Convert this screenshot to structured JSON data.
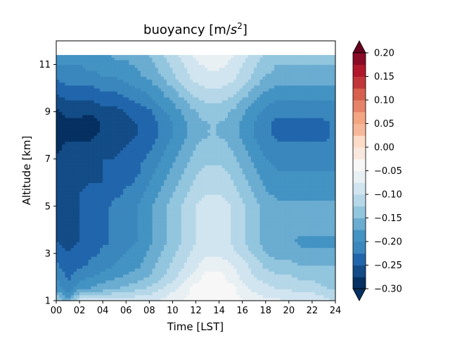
{
  "chart_data": {
    "type": "heatmap",
    "title_main": "buoyancy [m/",
    "title_unit_base": "s",
    "title_unit_exp": "2",
    "title_close": "]",
    "xlabel": "Time [LST]",
    "ylabel": "Altitude [km]",
    "xlim": [
      0,
      24
    ],
    "ylim": [
      1,
      12
    ],
    "data_top_km": 11.4,
    "x_ticks": [
      "00",
      "02",
      "04",
      "06",
      "08",
      "10",
      "12",
      "14",
      "16",
      "18",
      "20",
      "22",
      "24"
    ],
    "y_ticks": [
      "1",
      "3",
      "5",
      "7",
      "9",
      "11"
    ],
    "colorbar": {
      "extend": "both",
      "ticks": [
        "0.20",
        "0.15",
        "0.10",
        "0.05",
        "0.00",
        "−0.05",
        "−0.10",
        "−0.15",
        "−0.20",
        "−0.25",
        "−0.30"
      ],
      "vmin": -0.3,
      "vmax": 0.2,
      "levels": [
        -0.3,
        -0.275,
        -0.25,
        -0.225,
        -0.2,
        -0.175,
        -0.15,
        -0.125,
        -0.1,
        -0.075,
        -0.05,
        -0.025,
        0,
        0.025,
        0.05,
        0.075,
        0.1,
        0.125,
        0.15,
        0.175,
        0.2
      ],
      "colors": [
        "#053061",
        "#134c87",
        "#2166ac",
        "#3a87bd",
        "#4393c3",
        "#6bacd1",
        "#92c5de",
        "#b5d7e8",
        "#d1e5f0",
        "#e9f0f4",
        "#f7f7f7",
        "#f9e8dd",
        "#fddbc7",
        "#f7b799",
        "#f4a582",
        "#e58268",
        "#d6604d",
        "#c13639",
        "#b2182b",
        "#8a0b25",
        "#67001f"
      ]
    },
    "times": [
      0,
      1,
      2,
      3,
      4,
      5,
      6,
      7,
      8,
      9,
      10,
      11,
      12,
      13,
      14,
      15,
      16,
      17,
      18,
      19,
      20,
      21,
      22,
      23,
      24
    ],
    "altitudes": [
      1.0,
      1.5,
      2.0,
      2.5,
      3.0,
      3.5,
      4.0,
      4.5,
      5.0,
      5.5,
      6.0,
      6.5,
      7.0,
      7.5,
      8.0,
      8.5,
      9.0,
      9.5,
      10.0,
      10.5,
      11.0,
      11.4
    ],
    "values": [
      [
        -0.12,
        -0.16,
        -0.09,
        -0.08,
        -0.08,
        -0.08,
        -0.08,
        -0.08,
        -0.08,
        -0.07,
        -0.06,
        -0.05,
        -0.04,
        -0.03,
        -0.03,
        -0.04,
        -0.05,
        -0.06,
        -0.07,
        -0.07,
        -0.08,
        -0.08,
        -0.08,
        -0.09,
        -0.1
      ],
      [
        -0.18,
        -0.22,
        -0.18,
        -0.17,
        -0.16,
        -0.15,
        -0.14,
        -0.13,
        -0.12,
        -0.1,
        -0.08,
        -0.06,
        -0.04,
        -0.03,
        -0.03,
        -0.04,
        -0.06,
        -0.08,
        -0.09,
        -0.1,
        -0.1,
        -0.11,
        -0.11,
        -0.12,
        -0.13
      ],
      [
        -0.2,
        -0.23,
        -0.21,
        -0.2,
        -0.19,
        -0.18,
        -0.17,
        -0.16,
        -0.15,
        -0.13,
        -0.11,
        -0.08,
        -0.06,
        -0.04,
        -0.04,
        -0.06,
        -0.08,
        -0.1,
        -0.11,
        -0.12,
        -0.12,
        -0.13,
        -0.13,
        -0.14,
        -0.14
      ],
      [
        -0.22,
        -0.24,
        -0.23,
        -0.22,
        -0.21,
        -0.2,
        -0.19,
        -0.18,
        -0.16,
        -0.14,
        -0.12,
        -0.1,
        -0.08,
        -0.06,
        -0.06,
        -0.07,
        -0.09,
        -0.11,
        -0.13,
        -0.14,
        -0.14,
        -0.15,
        -0.15,
        -0.15,
        -0.15
      ],
      [
        -0.24,
        -0.25,
        -0.24,
        -0.23,
        -0.22,
        -0.21,
        -0.2,
        -0.19,
        -0.17,
        -0.15,
        -0.13,
        -0.11,
        -0.09,
        -0.08,
        -0.08,
        -0.09,
        -0.11,
        -0.13,
        -0.15,
        -0.16,
        -0.16,
        -0.17,
        -0.17,
        -0.17,
        -0.17
      ],
      [
        -0.25,
        -0.26,
        -0.25,
        -0.24,
        -0.23,
        -0.22,
        -0.21,
        -0.2,
        -0.18,
        -0.16,
        -0.14,
        -0.12,
        -0.1,
        -0.09,
        -0.09,
        -0.1,
        -0.12,
        -0.14,
        -0.16,
        -0.17,
        -0.17,
        -0.18,
        -0.18,
        -0.18,
        -0.18
      ],
      [
        -0.26,
        -0.26,
        -0.25,
        -0.24,
        -0.23,
        -0.22,
        -0.21,
        -0.2,
        -0.18,
        -0.16,
        -0.14,
        -0.12,
        -0.1,
        -0.09,
        -0.09,
        -0.1,
        -0.12,
        -0.14,
        -0.16,
        -0.17,
        -0.17,
        -0.17,
        -0.17,
        -0.17,
        -0.17
      ],
      [
        -0.26,
        -0.27,
        -0.25,
        -0.24,
        -0.23,
        -0.22,
        -0.21,
        -0.2,
        -0.18,
        -0.16,
        -0.14,
        -0.12,
        -0.1,
        -0.09,
        -0.09,
        -0.1,
        -0.12,
        -0.14,
        -0.16,
        -0.17,
        -0.17,
        -0.17,
        -0.17,
        -0.17,
        -0.17
      ],
      [
        -0.26,
        -0.27,
        -0.25,
        -0.24,
        -0.23,
        -0.22,
        -0.21,
        -0.2,
        -0.18,
        -0.16,
        -0.14,
        -0.12,
        -0.1,
        -0.09,
        -0.09,
        -0.1,
        -0.12,
        -0.14,
        -0.16,
        -0.17,
        -0.17,
        -0.17,
        -0.17,
        -0.17,
        -0.17
      ],
      [
        -0.26,
        -0.27,
        -0.25,
        -0.24,
        -0.24,
        -0.23,
        -0.22,
        -0.21,
        -0.19,
        -0.17,
        -0.15,
        -0.13,
        -0.11,
        -0.1,
        -0.1,
        -0.11,
        -0.13,
        -0.15,
        -0.17,
        -0.18,
        -0.18,
        -0.18,
        -0.18,
        -0.18,
        -0.18
      ],
      [
        -0.27,
        -0.27,
        -0.26,
        -0.25,
        -0.25,
        -0.24,
        -0.23,
        -0.22,
        -0.2,
        -0.18,
        -0.16,
        -0.14,
        -0.12,
        -0.11,
        -0.11,
        -0.12,
        -0.14,
        -0.16,
        -0.18,
        -0.19,
        -0.19,
        -0.19,
        -0.19,
        -0.19,
        -0.19
      ],
      [
        -0.27,
        -0.27,
        -0.26,
        -0.26,
        -0.25,
        -0.24,
        -0.24,
        -0.23,
        -0.21,
        -0.19,
        -0.17,
        -0.15,
        -0.13,
        -0.12,
        -0.12,
        -0.13,
        -0.15,
        -0.17,
        -0.19,
        -0.2,
        -0.2,
        -0.2,
        -0.2,
        -0.2,
        -0.2
      ],
      [
        -0.27,
        -0.27,
        -0.26,
        -0.26,
        -0.25,
        -0.25,
        -0.24,
        -0.23,
        -0.22,
        -0.2,
        -0.18,
        -0.16,
        -0.14,
        -0.13,
        -0.13,
        -0.14,
        -0.16,
        -0.18,
        -0.2,
        -0.21,
        -0.21,
        -0.21,
        -0.21,
        -0.21,
        -0.21
      ],
      [
        -0.28,
        -0.27,
        -0.27,
        -0.27,
        -0.26,
        -0.26,
        -0.25,
        -0.24,
        -0.23,
        -0.21,
        -0.19,
        -0.17,
        -0.15,
        -0.14,
        -0.14,
        -0.15,
        -0.17,
        -0.19,
        -0.21,
        -0.22,
        -0.22,
        -0.22,
        -0.22,
        -0.22,
        -0.22
      ],
      [
        -0.29,
        -0.28,
        -0.28,
        -0.28,
        -0.27,
        -0.27,
        -0.26,
        -0.25,
        -0.24,
        -0.22,
        -0.2,
        -0.18,
        -0.16,
        -0.15,
        -0.15,
        -0.16,
        -0.18,
        -0.2,
        -0.22,
        -0.23,
        -0.23,
        -0.23,
        -0.23,
        -0.23,
        -0.22
      ],
      [
        -0.29,
        -0.28,
        -0.28,
        -0.29,
        -0.27,
        -0.27,
        -0.26,
        -0.25,
        -0.24,
        -0.22,
        -0.2,
        -0.18,
        -0.16,
        -0.15,
        -0.15,
        -0.16,
        -0.18,
        -0.2,
        -0.22,
        -0.23,
        -0.23,
        -0.23,
        -0.23,
        -0.23,
        -0.22
      ],
      [
        -0.28,
        -0.27,
        -0.27,
        -0.27,
        -0.26,
        -0.26,
        -0.25,
        -0.24,
        -0.23,
        -0.21,
        -0.19,
        -0.17,
        -0.15,
        -0.14,
        -0.14,
        -0.15,
        -0.17,
        -0.19,
        -0.21,
        -0.22,
        -0.22,
        -0.22,
        -0.22,
        -0.22,
        -0.21
      ],
      [
        -0.26,
        -0.25,
        -0.25,
        -0.25,
        -0.24,
        -0.24,
        -0.23,
        -0.22,
        -0.21,
        -0.19,
        -0.17,
        -0.15,
        -0.13,
        -0.12,
        -0.12,
        -0.13,
        -0.15,
        -0.17,
        -0.19,
        -0.2,
        -0.2,
        -0.2,
        -0.2,
        -0.2,
        -0.2
      ],
      [
        -0.24,
        -0.23,
        -0.23,
        -0.23,
        -0.22,
        -0.22,
        -0.21,
        -0.2,
        -0.19,
        -0.17,
        -0.15,
        -0.13,
        -0.11,
        -0.1,
        -0.1,
        -0.11,
        -0.13,
        -0.15,
        -0.17,
        -0.18,
        -0.18,
        -0.18,
        -0.18,
        -0.18,
        -0.18
      ],
      [
        -0.22,
        -0.21,
        -0.21,
        -0.21,
        -0.2,
        -0.2,
        -0.19,
        -0.18,
        -0.17,
        -0.15,
        -0.13,
        -0.11,
        -0.09,
        -0.08,
        -0.08,
        -0.09,
        -0.11,
        -0.13,
        -0.15,
        -0.16,
        -0.16,
        -0.16,
        -0.16,
        -0.16,
        -0.16
      ],
      [
        -0.2,
        -0.2,
        -0.2,
        -0.19,
        -0.19,
        -0.18,
        -0.18,
        -0.17,
        -0.16,
        -0.14,
        -0.12,
        -0.1,
        -0.08,
        -0.07,
        -0.07,
        -0.08,
        -0.1,
        -0.12,
        -0.14,
        -0.15,
        -0.15,
        -0.15,
        -0.15,
        -0.15,
        -0.15
      ],
      [
        -0.19,
        -0.19,
        -0.19,
        -0.18,
        -0.18,
        -0.17,
        -0.17,
        -0.16,
        -0.15,
        -0.13,
        -0.11,
        -0.09,
        -0.07,
        -0.06,
        -0.06,
        -0.07,
        -0.09,
        -0.11,
        -0.13,
        -0.14,
        -0.14,
        -0.14,
        -0.14,
        -0.14,
        -0.14
      ]
    ]
  }
}
